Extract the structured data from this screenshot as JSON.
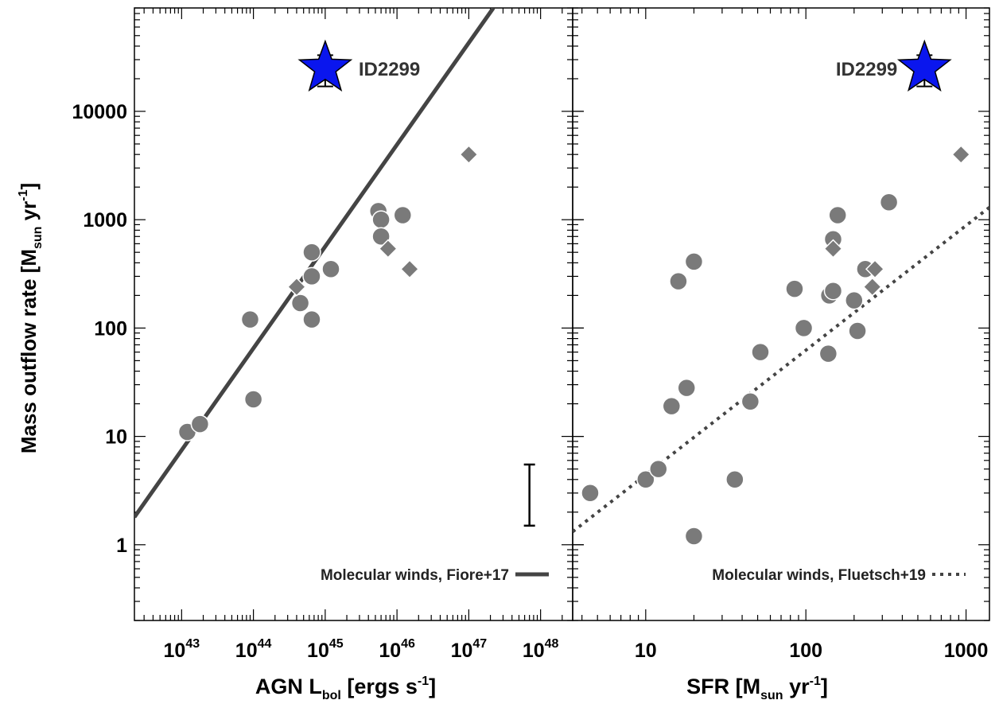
{
  "colors": {
    "marker_fill": "#7a7a7a",
    "marker_stroke": "#ffffff",
    "line": "#444444",
    "star": "#0a16ee",
    "axis": "#000000"
  },
  "ylabel_parts": [
    "Mass outflow rate [M",
    "sun",
    " yr",
    "-1",
    "]"
  ],
  "ylabel_text": "Mass outflow rate [Msun yr-1]",
  "y_tick_labels": [
    "1",
    "10",
    "100",
    "1000",
    "10000"
  ],
  "chart_data": [
    {
      "type": "scatter",
      "panel": "left",
      "xscale": "log",
      "yscale": "log",
      "xlim": [
        2.2e+42,
        2.8e+48
      ],
      "ylim": [
        0.2,
        90000
      ],
      "x_tick_labels": [
        {
          "base": "10",
          "exp": "43",
          "value": 1e+43
        },
        {
          "base": "10",
          "exp": "44",
          "value": 1e+44
        },
        {
          "base": "10",
          "exp": "45",
          "value": 1e+45
        },
        {
          "base": "10",
          "exp": "46",
          "value": 1e+46
        },
        {
          "base": "10",
          "exp": "47",
          "value": 1e+47
        },
        {
          "base": "10",
          "exp": "48",
          "value": 1e+48
        }
      ],
      "xlabel_parts": [
        "AGN L",
        "bol",
        " [ergs s",
        "-1",
        "]"
      ],
      "xlabel_text": "AGN Lbol [ergs s-1]",
      "circles": [
        {
          "x": 1.2e+43,
          "y": 11
        },
        {
          "x": 1.8e+43,
          "y": 13
        },
        {
          "x": 9e+43,
          "y": 120
        },
        {
          "x": 1e+44,
          "y": 22
        },
        {
          "x": 4.5e+44,
          "y": 170
        },
        {
          "x": 6.5e+44,
          "y": 120
        },
        {
          "x": 6.5e+44,
          "y": 300
        },
        {
          "x": 6.5e+44,
          "y": 500
        },
        {
          "x": 1.2e+45,
          "y": 350
        },
        {
          "x": 5.5e+45,
          "y": 1200
        },
        {
          "x": 6e+45,
          "y": 1000
        },
        {
          "x": 6e+45,
          "y": 700
        },
        {
          "x": 1.2e+46,
          "y": 1100
        }
      ],
      "diamonds": [
        {
          "x": 4e+44,
          "y": 240
        },
        {
          "x": 7.5e+45,
          "y": 540
        },
        {
          "x": 1.5e+46,
          "y": 350
        },
        {
          "x": 1e+47,
          "y": 4000
        }
      ],
      "star": {
        "x": 1e+45,
        "y": 25000,
        "yerr_low": 17000,
        "yerr_high": 33000,
        "label": "ID2299"
      },
      "fit_line": {
        "x": [
          2.2e+42,
          2.2e+47
        ],
        "y": [
          1.8,
          90000
        ],
        "style": "solid"
      },
      "error_bar": {
        "x": 7e+47,
        "y_low": 1.5,
        "y_high": 5.5
      },
      "legend": {
        "label": "Molecular winds, Fiore+17",
        "position": "bottom-right",
        "style": "solid"
      }
    },
    {
      "type": "scatter",
      "panel": "right",
      "xscale": "log",
      "yscale": "log",
      "xlim": [
        3.5,
        1400
      ],
      "ylim": [
        0.2,
        90000
      ],
      "x_tick_labels": [
        {
          "label": "10",
          "value": 10
        },
        {
          "label": "100",
          "value": 100
        },
        {
          "label": "1000",
          "value": 1000
        }
      ],
      "xlabel_parts": [
        "SFR [M",
        "sun",
        " yr",
        "-1",
        "]"
      ],
      "xlabel_text": "SFR [Msun yr-1]",
      "circles": [
        {
          "x": 4.5,
          "y": 3
        },
        {
          "x": 10,
          "y": 4
        },
        {
          "x": 12,
          "y": 5
        },
        {
          "x": 14.5,
          "y": 19
        },
        {
          "x": 16,
          "y": 270
        },
        {
          "x": 18,
          "y": 28
        },
        {
          "x": 20,
          "y": 410
        },
        {
          "x": 20,
          "y": 1.2
        },
        {
          "x": 36,
          "y": 4
        },
        {
          "x": 45,
          "y": 21
        },
        {
          "x": 52,
          "y": 60
        },
        {
          "x": 85,
          "y": 230
        },
        {
          "x": 97,
          "y": 100
        },
        {
          "x": 138,
          "y": 58
        },
        {
          "x": 140,
          "y": 200
        },
        {
          "x": 148,
          "y": 220
        },
        {
          "x": 148,
          "y": 660
        },
        {
          "x": 158,
          "y": 1100
        },
        {
          "x": 200,
          "y": 180
        },
        {
          "x": 210,
          "y": 94
        },
        {
          "x": 235,
          "y": 350
        },
        {
          "x": 330,
          "y": 1450
        }
      ],
      "diamonds": [
        {
          "x": 148,
          "y": 540
        },
        {
          "x": 260,
          "y": 240
        },
        {
          "x": 270,
          "y": 350
        },
        {
          "x": 930,
          "y": 4000
        }
      ],
      "star": {
        "x": 550,
        "y": 25000,
        "yerr_low": 17000,
        "yerr_high": 33000,
        "label": "ID2299"
      },
      "fit_line": {
        "x": [
          3.5,
          1400
        ],
        "y": [
          1.32,
          1300
        ],
        "style": "dotted"
      },
      "legend": {
        "label": "Molecular winds, Fluetsch+19",
        "position": "bottom-right",
        "style": "dotted"
      }
    }
  ]
}
